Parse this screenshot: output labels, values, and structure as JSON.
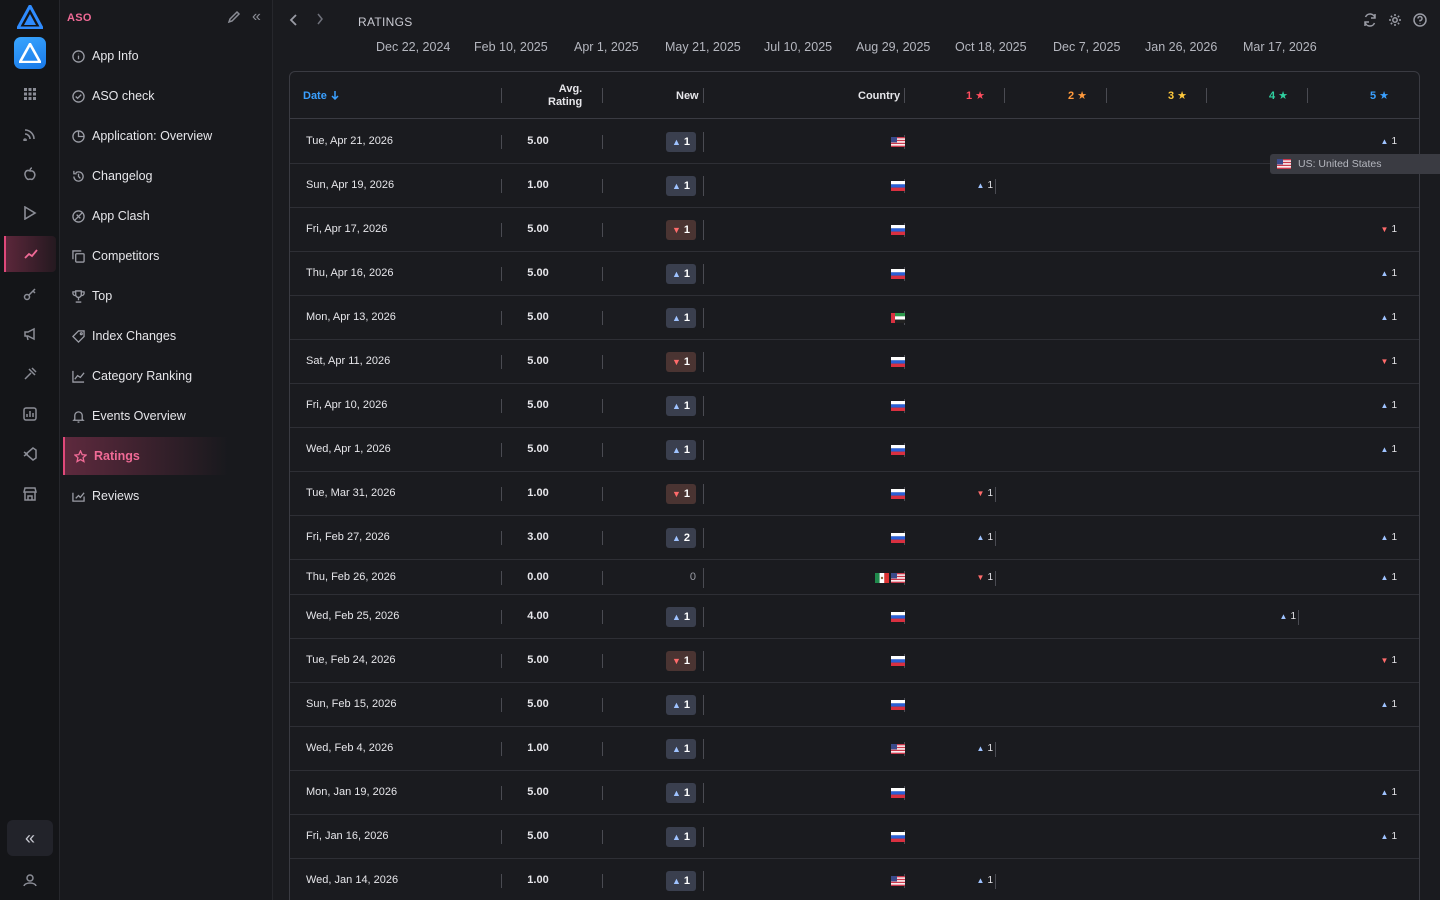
{
  "app": {
    "section": "ASO",
    "breadcrumb": "RATINGS"
  },
  "menu": [
    {
      "label": "App Info",
      "icon": "info-icon"
    },
    {
      "label": "ASO check",
      "icon": "check-circle-icon"
    },
    {
      "label": "Application: Overview",
      "icon": "pie-chart-icon"
    },
    {
      "label": "Changelog",
      "icon": "history-icon"
    },
    {
      "label": "App Clash",
      "icon": "clash-icon"
    },
    {
      "label": "Competitors",
      "icon": "copy-icon"
    },
    {
      "label": "Top",
      "icon": "trophy-icon"
    },
    {
      "label": "Index Changes",
      "icon": "tag-icon"
    },
    {
      "label": "Category Ranking",
      "icon": "line-chart-icon"
    },
    {
      "label": "Events Overview",
      "icon": "bell-icon"
    },
    {
      "label": "Ratings",
      "icon": "star-icon",
      "active": true
    },
    {
      "label": "Reviews",
      "icon": "reviews-icon"
    }
  ],
  "timeline": [
    "Dec 22, 2024",
    "Feb 10, 2025",
    "Apr 1, 2025",
    "May 21, 2025",
    "Jul 10, 2025",
    "Aug 29, 2025",
    "Oct 18, 2025",
    "Dec 7, 2025",
    "Jan 26, 2026",
    "Mar 17, 2026"
  ],
  "table": {
    "headers": {
      "date": "Date",
      "avg1": "Avg.",
      "avg2": "Rating",
      "new": "New",
      "country": "Country",
      "s1": "1",
      "s2": "2",
      "s3": "3",
      "s4": "4",
      "s5": "5",
      "star": "★"
    },
    "star_colors": {
      "s1": "#ff4d5e",
      "s2": "#ff9a3c",
      "s3": "#ffc93c",
      "s4": "#2fd1a0",
      "s5": "#3aa0ff"
    },
    "rows": [
      {
        "date": "Tue, Apr 21, 2026",
        "avg": "5.00",
        "new": "1",
        "dir": "up",
        "flags": [
          "us"
        ],
        "stars": {
          "s5": {
            "dir": "up",
            "v": "1"
          }
        }
      },
      {
        "date": "Sun, Apr 19, 2026",
        "avg": "1.00",
        "new": "1",
        "dir": "up",
        "flags": [
          "ru"
        ],
        "stars": {
          "s1": {
            "dir": "up",
            "v": "1"
          }
        }
      },
      {
        "date": "Fri, Apr 17, 2026",
        "avg": "5.00",
        "new": "1",
        "dir": "down",
        "flags": [
          "ru"
        ],
        "stars": {
          "s5": {
            "dir": "down",
            "v": "1"
          }
        }
      },
      {
        "date": "Thu, Apr 16, 2026",
        "avg": "5.00",
        "new": "1",
        "dir": "up",
        "flags": [
          "ru"
        ],
        "stars": {
          "s5": {
            "dir": "up",
            "v": "1"
          }
        }
      },
      {
        "date": "Mon, Apr 13, 2026",
        "avg": "5.00",
        "new": "1",
        "dir": "up",
        "flags": [
          "ae"
        ],
        "stars": {
          "s5": {
            "dir": "up",
            "v": "1"
          }
        }
      },
      {
        "date": "Sat, Apr 11, 2026",
        "avg": "5.00",
        "new": "1",
        "dir": "down",
        "flags": [
          "ru"
        ],
        "stars": {
          "s5": {
            "dir": "down",
            "v": "1"
          }
        }
      },
      {
        "date": "Fri, Apr 10, 2026",
        "avg": "5.00",
        "new": "1",
        "dir": "up",
        "flags": [
          "ru"
        ],
        "stars": {
          "s5": {
            "dir": "up",
            "v": "1"
          }
        }
      },
      {
        "date": "Wed, Apr 1, 2026",
        "avg": "5.00",
        "new": "1",
        "dir": "up",
        "flags": [
          "ru"
        ],
        "stars": {
          "s5": {
            "dir": "up",
            "v": "1"
          }
        }
      },
      {
        "date": "Tue, Mar 31, 2026",
        "avg": "1.00",
        "new": "1",
        "dir": "down",
        "flags": [
          "ru"
        ],
        "stars": {
          "s1": {
            "dir": "down",
            "v": "1"
          }
        }
      },
      {
        "date": "Fri, Feb 27, 2026",
        "avg": "3.00",
        "new": "2",
        "dir": "up",
        "flags": [
          "ru"
        ],
        "stars": {
          "s1": {
            "dir": "up",
            "v": "1"
          },
          "s5": {
            "dir": "up",
            "v": "1"
          }
        }
      },
      {
        "date": "Thu, Feb 26, 2026",
        "avg": "0.00",
        "new": "0",
        "dir": "none",
        "flags": [
          "mx",
          "us"
        ],
        "stars": {
          "s1": {
            "dir": "down",
            "v": "1"
          },
          "s5": {
            "dir": "up",
            "v": "1"
          }
        }
      },
      {
        "date": "Wed, Feb 25, 2026",
        "avg": "4.00",
        "new": "1",
        "dir": "up",
        "flags": [
          "ru"
        ],
        "stars": {
          "s4": {
            "dir": "up",
            "v": "1"
          }
        }
      },
      {
        "date": "Tue, Feb 24, 2026",
        "avg": "5.00",
        "new": "1",
        "dir": "down",
        "flags": [
          "ru"
        ],
        "stars": {
          "s5": {
            "dir": "down",
            "v": "1"
          }
        }
      },
      {
        "date": "Sun, Feb 15, 2026",
        "avg": "5.00",
        "new": "1",
        "dir": "up",
        "flags": [
          "ru"
        ],
        "stars": {
          "s5": {
            "dir": "up",
            "v": "1"
          }
        }
      },
      {
        "date": "Wed, Feb 4, 2026",
        "avg": "1.00",
        "new": "1",
        "dir": "up",
        "flags": [
          "us"
        ],
        "stars": {
          "s1": {
            "dir": "up",
            "v": "1"
          }
        }
      },
      {
        "date": "Mon, Jan 19, 2026",
        "avg": "5.00",
        "new": "1",
        "dir": "up",
        "flags": [
          "ru"
        ],
        "stars": {
          "s5": {
            "dir": "up",
            "v": "1"
          }
        }
      },
      {
        "date": "Fri, Jan 16, 2026",
        "avg": "5.00",
        "new": "1",
        "dir": "up",
        "flags": [
          "ru"
        ],
        "stars": {
          "s5": {
            "dir": "up",
            "v": "1"
          }
        }
      },
      {
        "date": "Wed, Jan 14, 2026",
        "avg": "1.00",
        "new": "1",
        "dir": "up",
        "flags": [
          "us"
        ],
        "stars": {
          "s1": {
            "dir": "up",
            "v": "1"
          }
        }
      }
    ]
  },
  "tooltip": {
    "text": "US: United States",
    "flag": "us"
  }
}
